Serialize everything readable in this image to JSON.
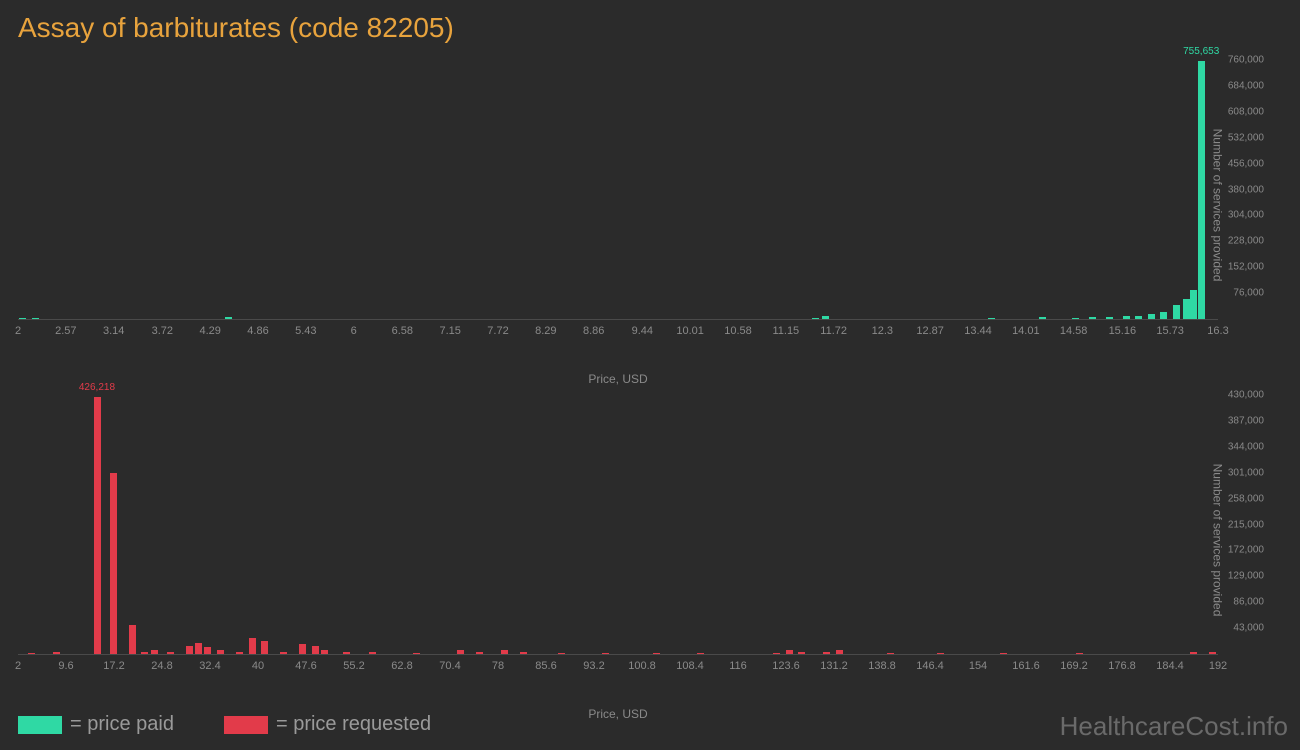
{
  "title": "Assay of barbiturates (code 82205)",
  "xlabel": "Price, USD",
  "ylabel": "Number of services provided",
  "legend": {
    "paid_label": "= price paid",
    "req_label": "= price requested",
    "paid_color": "#2fd9a4",
    "req_color": "#e23b4a"
  },
  "watermark": "HealthcareCost.info",
  "background_color": "#2b2b2b",
  "title_color": "#e8a33d",
  "tick_color": "#8a8a8a",
  "chart_paid": {
    "type": "bar",
    "color": "#2fd9a4",
    "xlim": [
      2,
      16.3
    ],
    "ylim": [
      0,
      760000
    ],
    "ytick_step": 76000,
    "xticks": [
      2,
      2.57,
      3.14,
      3.72,
      4.29,
      4.86,
      5.43,
      6,
      6.58,
      7.15,
      7.72,
      8.29,
      8.86,
      9.44,
      10.01,
      10.58,
      11.15,
      11.72,
      12.3,
      12.87,
      13.44,
      14.01,
      14.58,
      15.16,
      15.73,
      16.3
    ],
    "peak": {
      "x": 16.1,
      "value": 755653,
      "label": "755,653"
    },
    "bars": [
      {
        "x": 2.05,
        "y": 3000
      },
      {
        "x": 2.2,
        "y": 2000
      },
      {
        "x": 4.5,
        "y": 6000
      },
      {
        "x": 11.5,
        "y": 3000
      },
      {
        "x": 11.62,
        "y": 8000
      },
      {
        "x": 13.6,
        "y": 3000
      },
      {
        "x": 14.2,
        "y": 5000
      },
      {
        "x": 14.6,
        "y": 4000
      },
      {
        "x": 14.8,
        "y": 6000
      },
      {
        "x": 15.0,
        "y": 5000
      },
      {
        "x": 15.2,
        "y": 8000
      },
      {
        "x": 15.35,
        "y": 10000
      },
      {
        "x": 15.5,
        "y": 15000
      },
      {
        "x": 15.65,
        "y": 20000
      },
      {
        "x": 15.8,
        "y": 40000
      },
      {
        "x": 15.92,
        "y": 60000
      },
      {
        "x": 16.0,
        "y": 85000
      },
      {
        "x": 16.1,
        "y": 755653
      }
    ]
  },
  "chart_req": {
    "type": "bar",
    "color": "#e23b4a",
    "xlim": [
      2,
      192
    ],
    "ylim": [
      0,
      430000
    ],
    "ytick_step": 43000,
    "xticks": [
      2,
      9.6,
      17.2,
      24.8,
      32.4,
      40,
      47.6,
      55.2,
      62.8,
      70.4,
      78,
      85.6,
      93.2,
      100.8,
      108.4,
      116,
      123.6,
      131.2,
      138.8,
      146.4,
      154,
      161.6,
      169.2,
      176.8,
      184.4,
      192
    ],
    "peak": {
      "x": 14.5,
      "value": 426218,
      "label": "426,218"
    },
    "bars": [
      {
        "x": 4,
        "y": 2000
      },
      {
        "x": 8,
        "y": 3000
      },
      {
        "x": 14.5,
        "y": 426218
      },
      {
        "x": 17,
        "y": 300000
      },
      {
        "x": 20,
        "y": 48000
      },
      {
        "x": 22,
        "y": 4000
      },
      {
        "x": 23.5,
        "y": 6000
      },
      {
        "x": 26,
        "y": 4000
      },
      {
        "x": 29,
        "y": 14000
      },
      {
        "x": 30.5,
        "y": 18000
      },
      {
        "x": 32,
        "y": 12000
      },
      {
        "x": 34,
        "y": 6000
      },
      {
        "x": 37,
        "y": 4000
      },
      {
        "x": 39,
        "y": 26000
      },
      {
        "x": 41,
        "y": 22000
      },
      {
        "x": 44,
        "y": 4000
      },
      {
        "x": 47,
        "y": 16000
      },
      {
        "x": 49,
        "y": 14000
      },
      {
        "x": 50.5,
        "y": 6000
      },
      {
        "x": 54,
        "y": 4000
      },
      {
        "x": 58,
        "y": 3000
      },
      {
        "x": 65,
        "y": 2000
      },
      {
        "x": 72,
        "y": 6000
      },
      {
        "x": 75,
        "y": 4000
      },
      {
        "x": 79,
        "y": 6000
      },
      {
        "x": 82,
        "y": 3000
      },
      {
        "x": 88,
        "y": 2000
      },
      {
        "x": 95,
        "y": 2000
      },
      {
        "x": 103,
        "y": 2000
      },
      {
        "x": 110,
        "y": 2000
      },
      {
        "x": 122,
        "y": 2000
      },
      {
        "x": 124,
        "y": 6000
      },
      {
        "x": 126,
        "y": 4000
      },
      {
        "x": 130,
        "y": 4000
      },
      {
        "x": 132,
        "y": 6000
      },
      {
        "x": 140,
        "y": 2000
      },
      {
        "x": 148,
        "y": 2000
      },
      {
        "x": 158,
        "y": 2000
      },
      {
        "x": 170,
        "y": 2000
      },
      {
        "x": 188,
        "y": 3000
      },
      {
        "x": 191,
        "y": 4000
      }
    ]
  }
}
